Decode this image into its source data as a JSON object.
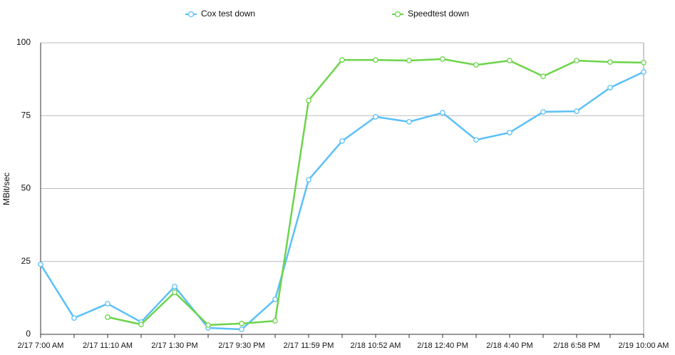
{
  "chart_data": {
    "type": "line",
    "y_label": "MBit/sec",
    "categories": [
      "2/17 7:00 AM",
      null,
      "2/17 11:10 AM",
      null,
      "2/17 1:30 PM",
      null,
      "2/17 9:30 PM",
      null,
      "2/17 11:59 PM",
      null,
      "2/18 10:52 AM",
      null,
      "2/18 12:40 PM",
      null,
      "2/18 4:40 PM",
      null,
      "2/18 6:58 PM",
      null,
      "2/19 10:00 AM"
    ],
    "series": [
      {
        "name": "Cox test down",
        "color": "#5bc0f8",
        "values": [
          24,
          5.6,
          10.5,
          4.2,
          16.4,
          2.2,
          1.7,
          12,
          53,
          66.3,
          74.6,
          72.9,
          76,
          66.7,
          69.2,
          76.3,
          76.5,
          84.6,
          90
        ]
      },
      {
        "name": "Speedtest down",
        "color": "#6cd44a",
        "values": [
          null,
          null,
          5.9,
          3.4,
          14.4,
          3.2,
          3.7,
          4.6,
          80.2,
          94.1,
          94.1,
          93.9,
          94.4,
          92.4,
          93.9,
          88.5,
          93.9,
          93.4,
          93.2
        ]
      }
    ],
    "ylim": [
      0,
      100
    ],
    "yticks": [
      0,
      25,
      50,
      75,
      100
    ],
    "grid": true,
    "legend": "top"
  }
}
